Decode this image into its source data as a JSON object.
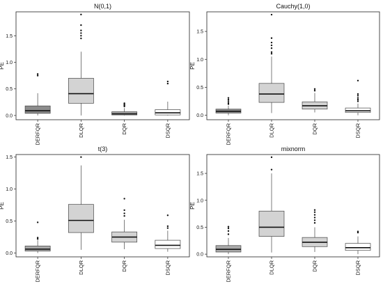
{
  "chart_data": [
    {
      "type": "boxplot",
      "title": "N(0,1)",
      "xlabel": "",
      "ylabel": "PE",
      "ylim": [
        -0.08,
        1.95
      ],
      "yticks": [
        0.0,
        0.5,
        1.0,
        1.5
      ],
      "ytick_labels": [
        "0.0",
        "0.5",
        "1.0",
        "1.5"
      ],
      "categories": [
        "DERFQR",
        "DLQR",
        "DQR",
        "DSQR"
      ],
      "fills": [
        "#8c8c8c",
        "#d3d3d3",
        "#a9a9a9",
        "#ffffff"
      ],
      "boxes": [
        {
          "whisker_low": 0.0,
          "q1": 0.04,
          "median": 0.09,
          "q3": 0.18,
          "whisker_high": 0.42,
          "outliers": [
            0.75,
            0.78
          ]
        },
        {
          "whisker_low": 0.0,
          "q1": 0.23,
          "median": 0.41,
          "q3": 0.7,
          "whisker_high": 1.2,
          "outliers": [
            1.45,
            1.5,
            1.55,
            1.6,
            1.7,
            1.9
          ]
        },
        {
          "whisker_low": 0.0,
          "q1": 0.01,
          "median": 0.03,
          "q3": 0.07,
          "whisker_high": 0.14,
          "outliers": [
            0.17,
            0.19,
            0.21,
            0.23
          ]
        },
        {
          "whisker_low": 0.0,
          "q1": 0.01,
          "median": 0.05,
          "q3": 0.11,
          "whisker_high": 0.26,
          "outliers": [
            0.6,
            0.64
          ]
        }
      ]
    },
    {
      "type": "boxplot",
      "title": "Cauchy(1,0)",
      "xlabel": "",
      "ylabel": "PE",
      "ylim": [
        -0.08,
        1.85
      ],
      "yticks": [
        0.0,
        0.5,
        1.0,
        1.5
      ],
      "ytick_labels": [
        "0.0",
        "0.5",
        "1.0",
        "1.5"
      ],
      "categories": [
        "DERFQR",
        "DLQR",
        "DQR",
        "DSQR"
      ],
      "fills": [
        "#8c8c8c",
        "#d3d3d3",
        "#d3d3d3",
        "#ffffff"
      ],
      "boxes": [
        {
          "whisker_low": 0.0,
          "q1": 0.04,
          "median": 0.07,
          "q3": 0.11,
          "whisker_high": 0.17,
          "outliers": [
            0.2,
            0.22,
            0.25,
            0.28,
            0.31
          ]
        },
        {
          "whisker_low": 0.04,
          "q1": 0.23,
          "median": 0.38,
          "q3": 0.57,
          "whisker_high": 1.05,
          "outliers": [
            1.1,
            1.13,
            1.2,
            1.25,
            1.3,
            1.38,
            1.8
          ]
        },
        {
          "whisker_low": 0.05,
          "q1": 0.11,
          "median": 0.17,
          "q3": 0.24,
          "whisker_high": 0.4,
          "outliers": [
            0.44,
            0.47
          ]
        },
        {
          "whisker_low": 0.0,
          "q1": 0.05,
          "median": 0.08,
          "q3": 0.13,
          "whisker_high": 0.21,
          "outliers": [
            0.25,
            0.28,
            0.31,
            0.35,
            0.38,
            0.62
          ]
        }
      ]
    },
    {
      "type": "boxplot",
      "title": "t(3)",
      "xlabel": "",
      "ylabel": "PE",
      "ylim": [
        -0.06,
        1.54
      ],
      "yticks": [
        0.0,
        0.5,
        1.0,
        1.5
      ],
      "ytick_labels": [
        "0.0",
        "0.5",
        "1.0",
        "1.5"
      ],
      "categories": [
        "DERFQR",
        "DLQR",
        "DQR",
        "DSQR"
      ],
      "fills": [
        "#a9a9a9",
        "#d3d3d3",
        "#d3d3d3",
        "#ffffff"
      ],
      "boxes": [
        {
          "whisker_low": 0.0,
          "q1": 0.03,
          "median": 0.06,
          "q3": 0.11,
          "whisker_high": 0.2,
          "outliers": [
            0.22,
            0.24,
            0.48
          ]
        },
        {
          "whisker_low": 0.05,
          "q1": 0.32,
          "median": 0.51,
          "q3": 0.76,
          "whisker_high": 1.37,
          "outliers": [
            1.5
          ]
        },
        {
          "whisker_low": 0.06,
          "q1": 0.17,
          "median": 0.25,
          "q3": 0.33,
          "whisker_high": 0.52,
          "outliers": [
            0.58,
            0.62,
            0.67,
            0.85
          ]
        },
        {
          "whisker_low": 0.02,
          "q1": 0.07,
          "median": 0.12,
          "q3": 0.2,
          "whisker_high": 0.35,
          "outliers": [
            0.39,
            0.42,
            0.59
          ]
        }
      ]
    },
    {
      "type": "boxplot",
      "title": "mixnorm",
      "xlabel": "",
      "ylabel": "PE",
      "ylim": [
        -0.05,
        1.85
      ],
      "yticks": [
        0.0,
        0.5,
        1.0,
        1.5
      ],
      "ytick_labels": [
        "0.0",
        "0.5",
        "1.0",
        "1.5"
      ],
      "categories": [
        "DERFQR",
        "DLQR",
        "DQR",
        "DSQR"
      ],
      "fills": [
        "#a9a9a9",
        "#d3d3d3",
        "#d3d3d3",
        "#ffffff"
      ],
      "boxes": [
        {
          "whisker_low": 0.0,
          "q1": 0.04,
          "median": 0.09,
          "q3": 0.16,
          "whisker_high": 0.3,
          "outliers": [
            0.37,
            0.43,
            0.48,
            0.51
          ]
        },
        {
          "whisker_low": 0.03,
          "q1": 0.33,
          "median": 0.5,
          "q3": 0.8,
          "whisker_high": 1.5,
          "outliers": [
            1.57,
            1.8
          ]
        },
        {
          "whisker_low": 0.04,
          "q1": 0.14,
          "median": 0.22,
          "q3": 0.31,
          "whisker_high": 0.5,
          "outliers": [
            0.58,
            0.63,
            0.68,
            0.73,
            0.78,
            0.82
          ]
        },
        {
          "whisker_low": 0.0,
          "q1": 0.07,
          "median": 0.12,
          "q3": 0.2,
          "whisker_high": 0.33,
          "outliers": [
            0.4,
            0.42
          ]
        }
      ]
    }
  ]
}
